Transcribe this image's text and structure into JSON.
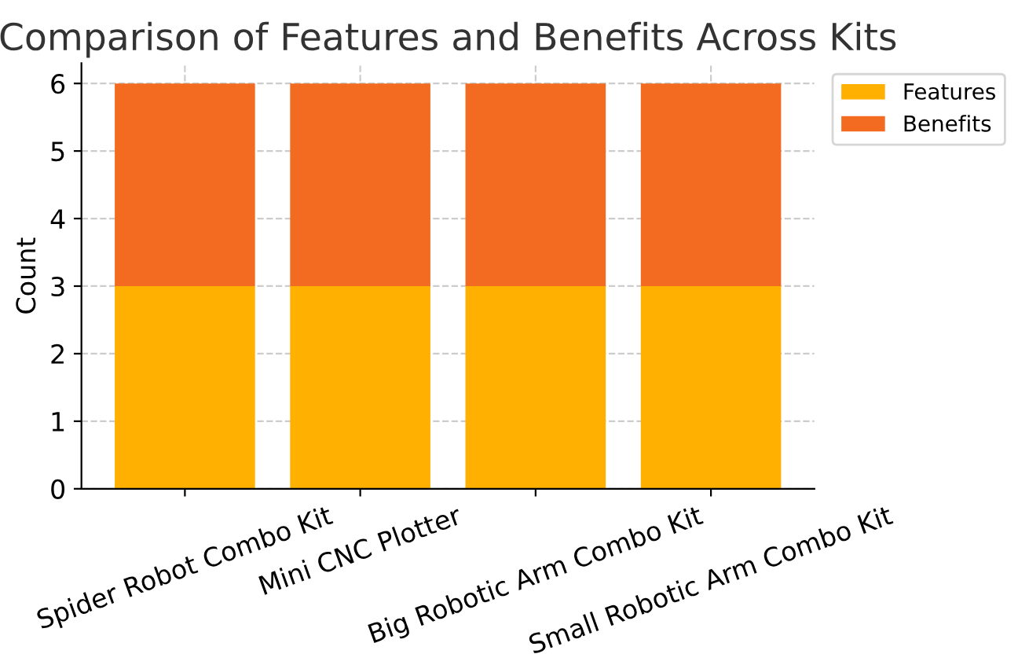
{
  "chart_data": {
    "type": "bar",
    "title": "Comparison of Features and Benefits Across Kits",
    "ylabel": "Count",
    "categories": [
      "Spider Robot Combo Kit",
      "Mini CNC Plotter",
      "Big Robotic Arm Combo Kit",
      "Small Robotic Arm Combo Kit"
    ],
    "series": [
      {
        "name": "Features",
        "color": "#ffb000",
        "values": [
          3,
          3,
          3,
          3
        ]
      },
      {
        "name": "Benefits",
        "color": "#f26b21",
        "values": [
          3,
          3,
          3,
          3
        ]
      }
    ],
    "stacked": true,
    "ylim": [
      0,
      6.3
    ],
    "yticks": [
      0,
      1,
      2,
      3,
      4,
      5,
      6
    ],
    "grid": true,
    "legend": "top right"
  }
}
